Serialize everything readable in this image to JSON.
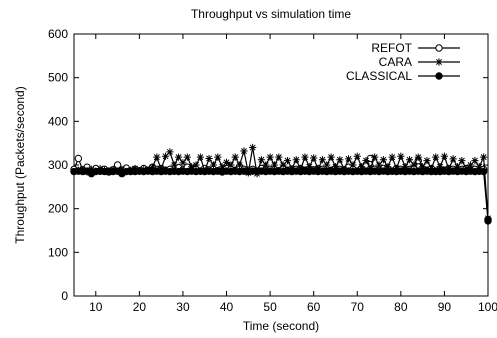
{
  "chart_data": {
    "type": "line",
    "title": "Throughput vs simulation time",
    "xlabel": "Time (second)",
    "ylabel": "Throughput (Packets/second)",
    "xlim": [
      5,
      100
    ],
    "ylim": [
      0,
      600
    ],
    "x_ticks": [
      10,
      20,
      30,
      40,
      50,
      60,
      70,
      80,
      90,
      100
    ],
    "y_ticks": [
      0,
      100,
      200,
      300,
      400,
      500,
      600
    ],
    "grid": false,
    "legend": "top-right",
    "series": [
      {
        "name": "REFOT",
        "marker": "open-circle",
        "x": [
          5,
          6,
          7,
          8,
          9,
          10,
          11,
          12,
          13,
          14,
          15,
          16,
          17,
          18,
          19,
          20,
          21,
          22,
          23,
          24,
          25,
          26,
          27,
          28,
          29,
          30,
          31,
          32,
          33,
          34,
          35,
          36,
          37,
          38,
          39,
          40,
          41,
          42,
          43,
          44,
          45,
          46,
          47,
          48,
          49,
          50,
          51,
          52,
          53,
          54,
          55,
          56,
          57,
          58,
          59,
          60,
          61,
          62,
          63,
          64,
          65,
          66,
          67,
          68,
          69,
          70,
          71,
          72,
          73,
          74,
          75,
          76,
          77,
          78,
          79,
          80,
          81,
          82,
          83,
          84,
          85,
          86,
          87,
          88,
          89,
          90,
          91,
          92,
          93,
          94,
          95,
          96,
          97,
          98,
          99,
          100
        ],
        "y": [
          290,
          315,
          288,
          295,
          284,
          292,
          286,
          290,
          284,
          289,
          300,
          288,
          293,
          285,
          290,
          287,
          292,
          288,
          295,
          290,
          292,
          288,
          290,
          286,
          294,
          289,
          295,
          288,
          290,
          286,
          292,
          289,
          290,
          287,
          284,
          292,
          290,
          288,
          295,
          290,
          288,
          290,
          286,
          292,
          288,
          290,
          289,
          287,
          292,
          288,
          286,
          290,
          292,
          288,
          290,
          289,
          292,
          290,
          286,
          288,
          292,
          290,
          288,
          295,
          290,
          286,
          292,
          300,
          315,
          290,
          288,
          292,
          290,
          286,
          292,
          290,
          288,
          290,
          292,
          310,
          290,
          288,
          292,
          285,
          290,
          288,
          292,
          290,
          288,
          290,
          292,
          288,
          290,
          286,
          290,
          175
        ]
      },
      {
        "name": "CARA",
        "marker": "star",
        "x": [
          5,
          6,
          7,
          8,
          9,
          10,
          11,
          12,
          13,
          14,
          15,
          16,
          17,
          18,
          19,
          20,
          21,
          22,
          23,
          24,
          25,
          26,
          27,
          28,
          29,
          30,
          31,
          32,
          33,
          34,
          35,
          36,
          37,
          38,
          39,
          40,
          41,
          42,
          43,
          44,
          45,
          46,
          47,
          48,
          49,
          50,
          51,
          52,
          53,
          54,
          55,
          56,
          57,
          58,
          59,
          60,
          61,
          62,
          63,
          64,
          65,
          66,
          67,
          68,
          69,
          70,
          71,
          72,
          73,
          74,
          75,
          76,
          77,
          78,
          79,
          80,
          81,
          82,
          83,
          84,
          85,
          86,
          87,
          88,
          89,
          90,
          91,
          92,
          93,
          94,
          95,
          96,
          97,
          98,
          99,
          100
        ],
        "y": [
          285,
          288,
          290,
          284,
          290,
          286,
          292,
          288,
          284,
          290,
          286,
          290,
          285,
          288,
          292,
          286,
          290,
          288,
          295,
          318,
          290,
          320,
          330,
          300,
          318,
          305,
          318,
          296,
          300,
          318,
          286,
          315,
          300,
          318,
          296,
          306,
          300,
          318,
          300,
          332,
          282,
          340,
          280,
          312,
          300,
          318,
          300,
          318,
          300,
          310,
          292,
          312,
          290,
          318,
          296,
          316,
          290,
          312,
          300,
          318,
          296,
          312,
          290,
          314,
          300,
          320,
          296,
          310,
          292,
          318,
          300,
          312,
          296,
          318,
          292,
          320,
          296,
          312,
          300,
          318,
          296,
          310,
          292,
          318,
          296,
          320,
          290,
          314,
          296,
          310,
          292,
          300,
          310,
          296,
          318,
          178
        ]
      },
      {
        "name": "CLASSICAL",
        "marker": "filled-circle",
        "x": [
          5,
          6,
          7,
          8,
          9,
          10,
          11,
          12,
          13,
          14,
          15,
          16,
          17,
          18,
          19,
          20,
          21,
          22,
          23,
          24,
          25,
          26,
          27,
          28,
          29,
          30,
          31,
          32,
          33,
          34,
          35,
          36,
          37,
          38,
          39,
          40,
          41,
          42,
          43,
          44,
          45,
          46,
          47,
          48,
          49,
          50,
          51,
          52,
          53,
          54,
          55,
          56,
          57,
          58,
          59,
          60,
          61,
          62,
          63,
          64,
          65,
          66,
          67,
          68,
          69,
          70,
          71,
          72,
          73,
          74,
          75,
          76,
          77,
          78,
          79,
          80,
          81,
          82,
          83,
          84,
          85,
          86,
          87,
          88,
          89,
          90,
          91,
          92,
          93,
          94,
          95,
          96,
          97,
          98,
          99,
          100
        ],
        "y": [
          285,
          286,
          285,
          286,
          280,
          285,
          286,
          285,
          286,
          285,
          286,
          280,
          285,
          286,
          285,
          286,
          285,
          286,
          285,
          286,
          285,
          286,
          285,
          286,
          285,
          286,
          285,
          286,
          285,
          286,
          285,
          286,
          285,
          286,
          285,
          286,
          285,
          286,
          285,
          286,
          285,
          286,
          285,
          286,
          285,
          286,
          285,
          286,
          285,
          286,
          285,
          286,
          285,
          286,
          285,
          286,
          285,
          286,
          285,
          286,
          285,
          286,
          285,
          286,
          285,
          286,
          285,
          286,
          285,
          286,
          285,
          286,
          285,
          286,
          285,
          286,
          285,
          286,
          285,
          286,
          285,
          286,
          285,
          286,
          285,
          286,
          285,
          286,
          285,
          286,
          285,
          286,
          285,
          286,
          285,
          172
        ]
      }
    ]
  }
}
